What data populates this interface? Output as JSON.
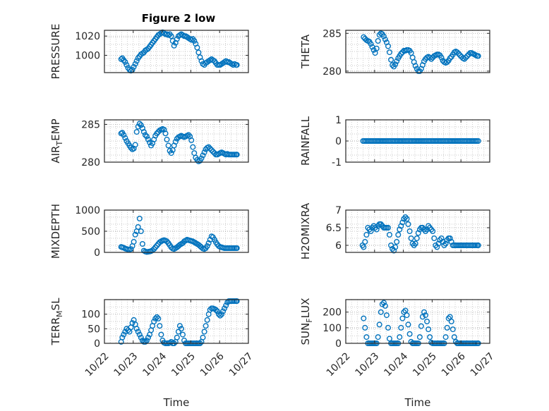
{
  "figure_title": "Figure 2 low",
  "colors": {
    "marker": "#0072BD",
    "axis": "#262626",
    "grid": "#b8b8b8"
  },
  "chart_data": [
    {
      "id": "pressure",
      "type": "scatter",
      "ylabel": "PRESSURE",
      "ylim": [
        982,
        1026
      ],
      "yticks": [
        1000,
        1020
      ],
      "ytick_labels": [
        "1000",
        "1020"
      ],
      "xlim": [
        0,
        5
      ],
      "grid": true,
      "x": [
        0.58,
        0.62,
        0.67,
        0.72,
        0.77,
        0.82,
        0.87,
        0.92,
        0.97,
        1.02,
        1.07,
        1.12,
        1.17,
        1.22,
        1.27,
        1.32,
        1.37,
        1.42,
        1.47,
        1.52,
        1.57,
        1.62,
        1.67,
        1.72,
        1.77,
        1.82,
        1.87,
        1.92,
        1.97,
        2.02,
        2.07,
        2.12,
        2.17,
        2.22,
        2.27,
        2.32,
        2.37,
        2.42,
        2.47,
        2.52,
        2.57,
        2.62,
        2.67,
        2.72,
        2.77,
        2.82,
        2.87,
        2.92,
        2.97,
        3.02,
        3.07,
        3.12,
        3.17,
        3.22,
        3.27,
        3.32,
        3.37,
        3.42,
        3.47,
        3.52,
        3.57,
        3.62,
        3.67,
        3.72,
        3.77,
        3.82,
        3.87,
        3.92,
        3.97,
        4.02,
        4.07,
        4.12,
        4.17,
        4.22,
        4.27,
        4.32,
        4.37,
        4.42,
        4.47,
        4.52,
        4.57,
        4.6
      ],
      "y": [
        996,
        997,
        995,
        993,
        990,
        987,
        985,
        984,
        985,
        988,
        991,
        994,
        997,
        999,
        1001,
        1002,
        1003,
        1005,
        1006,
        1007,
        1009,
        1011,
        1013,
        1015,
        1017,
        1019,
        1021,
        1022,
        1023,
        1024,
        1023,
        1022,
        1022,
        1021,
        1022,
        1020,
        1015,
        1010,
        1013,
        1017,
        1020,
        1021,
        1022,
        1021,
        1020,
        1020,
        1019,
        1018,
        1017,
        1016,
        1017,
        1015,
        1012,
        1008,
        1003,
        998,
        994,
        991,
        990,
        992,
        993,
        994,
        995,
        996,
        995,
        994,
        992,
        990,
        990,
        990,
        991,
        992,
        993,
        994,
        993,
        993,
        992,
        991,
        990,
        991,
        990,
        990
      ]
    },
    {
      "id": "theta",
      "type": "scatter",
      "ylabel": "THETA",
      "ylim": [
        279.8,
        285.4
      ],
      "yticks": [
        280,
        285
      ],
      "ytick_labels": [
        "280",
        "285"
      ],
      "xlim": [
        0,
        5
      ],
      "grid": true,
      "x": [
        0.62,
        0.67,
        0.72,
        0.77,
        0.82,
        0.87,
        0.92,
        0.97,
        1.02,
        1.07,
        1.12,
        1.17,
        1.22,
        1.27,
        1.32,
        1.37,
        1.42,
        1.47,
        1.52,
        1.57,
        1.62,
        1.67,
        1.72,
        1.77,
        1.82,
        1.87,
        1.92,
        1.97,
        2.02,
        2.07,
        2.12,
        2.17,
        2.22,
        2.27,
        2.32,
        2.37,
        2.42,
        2.47,
        2.52,
        2.57,
        2.62,
        2.67,
        2.72,
        2.77,
        2.82,
        2.87,
        2.92,
        2.97,
        3.02,
        3.07,
        3.12,
        3.17,
        3.22,
        3.27,
        3.32,
        3.37,
        3.42,
        3.47,
        3.52,
        3.57,
        3.62,
        3.67,
        3.72,
        3.77,
        3.82,
        3.87,
        3.92,
        3.97,
        4.02,
        4.07,
        4.12,
        4.17,
        4.22,
        4.27,
        4.32,
        4.37,
        4.42,
        4.47,
        4.52,
        4.57,
        4.6
      ],
      "y": [
        284.5,
        284.3,
        284.1,
        284.0,
        283.9,
        283.6,
        283.2,
        282.8,
        282.4,
        283.0,
        284.0,
        284.8,
        285.0,
        284.9,
        284.6,
        284.2,
        283.8,
        283.3,
        282.5,
        281.5,
        280.8,
        280.6,
        280.9,
        281.3,
        281.7,
        282.0,
        282.3,
        282.5,
        282.7,
        282.7,
        282.8,
        282.8,
        282.7,
        282.4,
        281.8,
        281.2,
        280.7,
        280.3,
        280.0,
        280.0,
        280.3,
        280.8,
        281.3,
        281.6,
        281.8,
        281.9,
        281.8,
        281.6,
        281.8,
        282.0,
        282.1,
        282.2,
        282.2,
        282.1,
        281.8,
        281.4,
        281.2,
        281.1,
        281.2,
        281.4,
        281.7,
        281.9,
        282.2,
        282.5,
        282.6,
        282.5,
        282.3,
        282.1,
        281.9,
        281.7,
        281.6,
        281.8,
        282.0,
        282.2,
        282.4,
        282.4,
        282.3,
        282.2,
        282.1,
        282.0,
        282.0
      ]
    },
    {
      "id": "airtemp",
      "type": "scatter",
      "ylabel_main": "AIR",
      "ylabel_sub": "T",
      "ylabel_rest": "EMP",
      "ylim": [
        280,
        285.6
      ],
      "yticks": [
        280,
        285
      ],
      "ytick_labels": [
        "280",
        "285"
      ],
      "xlim": [
        0,
        5
      ],
      "grid": true,
      "x": [
        0.58,
        0.62,
        0.67,
        0.72,
        0.77,
        0.82,
        0.87,
        0.92,
        0.97,
        1.02,
        1.07,
        1.12,
        1.17,
        1.22,
        1.27,
        1.32,
        1.37,
        1.42,
        1.47,
        1.52,
        1.57,
        1.62,
        1.67,
        1.72,
        1.77,
        1.82,
        1.87,
        1.92,
        1.97,
        2.02,
        2.07,
        2.12,
        2.17,
        2.22,
        2.27,
        2.32,
        2.37,
        2.42,
        2.47,
        2.52,
        2.57,
        2.62,
        2.67,
        2.72,
        2.77,
        2.82,
        2.87,
        2.92,
        2.97,
        3.02,
        3.07,
        3.12,
        3.17,
        3.22,
        3.27,
        3.32,
        3.37,
        3.42,
        3.47,
        3.52,
        3.57,
        3.62,
        3.67,
        3.72,
        3.77,
        3.82,
        3.87,
        3.92,
        3.97,
        4.02,
        4.07,
        4.12,
        4.17,
        4.22,
        4.27,
        4.32,
        4.37,
        4.42,
        4.47,
        4.52,
        4.57,
        4.6
      ],
      "y": [
        283.8,
        283.9,
        283.6,
        283.2,
        282.8,
        282.5,
        282.2,
        281.9,
        281.7,
        281.8,
        282.3,
        284.0,
        284.7,
        285.1,
        284.9,
        284.5,
        284.0,
        283.6,
        283.4,
        283.0,
        282.6,
        282.2,
        282.5,
        283.0,
        283.5,
        283.8,
        284.0,
        284.2,
        284.3,
        284.4,
        284.3,
        283.8,
        283.0,
        282.2,
        281.5,
        281.2,
        281.6,
        282.2,
        282.7,
        283.1,
        283.3,
        283.4,
        283.5,
        283.4,
        283.3,
        283.4,
        283.5,
        283.6,
        283.4,
        282.9,
        282.0,
        281.2,
        280.6,
        280.3,
        280.1,
        280.2,
        280.5,
        280.9,
        281.3,
        281.7,
        281.9,
        282.0,
        281.8,
        281.6,
        281.4,
        281.2,
        281.0,
        281.0,
        281.1,
        281.2,
        281.3,
        281.2,
        281.1,
        281.0,
        281.1,
        281.0,
        281.0,
        281.0,
        281.0,
        281.0,
        281.0,
        281.0
      ]
    },
    {
      "id": "rainfall",
      "type": "scatter",
      "ylabel": "RAINFALL",
      "ylim": [
        -1,
        1
      ],
      "yticks": [
        -1,
        0,
        1
      ],
      "ytick_labels": [
        "-1",
        "0",
        "1"
      ],
      "xlim": [
        0,
        5
      ],
      "grid": true,
      "x_start": 0.6,
      "x_end": 4.6,
      "x_step": 0.05,
      "constant_y": 0
    },
    {
      "id": "mixdepth",
      "type": "scatter",
      "ylabel": "MIXDEPTH",
      "ylim": [
        0,
        1000
      ],
      "yticks": [
        0,
        500,
        1000
      ],
      "ytick_labels": [
        "0",
        "500",
        "1000"
      ],
      "xlim": [
        0,
        5
      ],
      "grid": true,
      "x": [
        0.58,
        0.62,
        0.67,
        0.72,
        0.77,
        0.82,
        0.87,
        0.92,
        0.97,
        1.02,
        1.07,
        1.12,
        1.17,
        1.22,
        1.27,
        1.32,
        1.37,
        1.42,
        1.47,
        1.52,
        1.57,
        1.62,
        1.67,
        1.72,
        1.77,
        1.82,
        1.87,
        1.92,
        1.97,
        2.02,
        2.07,
        2.12,
        2.17,
        2.22,
        2.27,
        2.32,
        2.37,
        2.42,
        2.47,
        2.52,
        2.57,
        2.62,
        2.67,
        2.72,
        2.77,
        2.82,
        2.87,
        2.92,
        2.97,
        3.02,
        3.07,
        3.12,
        3.17,
        3.22,
        3.27,
        3.32,
        3.37,
        3.42,
        3.47,
        3.52,
        3.57,
        3.62,
        3.67,
        3.72,
        3.77,
        3.82,
        3.87,
        3.92,
        3.97,
        4.02,
        4.07,
        4.12,
        4.17,
        4.22,
        4.27,
        4.32,
        4.37,
        4.42,
        4.47,
        4.52,
        4.57,
        4.6
      ],
      "y": [
        130,
        120,
        110,
        90,
        80,
        70,
        60,
        80,
        150,
        250,
        420,
        500,
        600,
        800,
        500,
        200,
        40,
        20,
        10,
        15,
        20,
        30,
        50,
        80,
        120,
        160,
        200,
        240,
        260,
        280,
        290,
        280,
        260,
        220,
        170,
        120,
        90,
        80,
        100,
        120,
        150,
        180,
        200,
        220,
        260,
        280,
        300,
        290,
        280,
        270,
        260,
        240,
        220,
        200,
        180,
        150,
        120,
        90,
        80,
        100,
        150,
        220,
        300,
        380,
        360,
        300,
        240,
        190,
        150,
        130,
        120,
        110,
        100,
        100,
        100,
        100,
        100,
        100,
        100,
        100,
        100,
        100
      ]
    },
    {
      "id": "h2omixra",
      "type": "scatter",
      "ylabel": "H2OMIXRA",
      "ylim": [
        5.8,
        7
      ],
      "yticks": [
        6,
        6.5,
        7
      ],
      "ytick_labels": [
        "6",
        "6.5",
        "7"
      ],
      "xlim": [
        0,
        5
      ],
      "grid": true,
      "x": [
        0.58,
        0.62,
        0.67,
        0.72,
        0.77,
        0.82,
        0.87,
        0.92,
        0.97,
        1.02,
        1.07,
        1.12,
        1.17,
        1.22,
        1.27,
        1.32,
        1.37,
        1.42,
        1.47,
        1.52,
        1.57,
        1.62,
        1.67,
        1.72,
        1.77,
        1.82,
        1.87,
        1.92,
        1.97,
        2.02,
        2.07,
        2.12,
        2.17,
        2.22,
        2.27,
        2.32,
        2.37,
        2.42,
        2.47,
        2.52,
        2.57,
        2.62,
        2.67,
        2.72,
        2.77,
        2.82,
        2.87,
        2.92,
        2.97,
        3.02,
        3.07,
        3.12,
        3.17,
        3.22,
        3.27,
        3.32,
        3.37,
        3.42,
        3.47,
        3.52,
        3.57,
        3.62,
        3.67,
        3.72,
        3.77,
        3.82,
        3.87,
        3.92,
        3.97,
        4.02,
        4.07,
        4.12,
        4.17,
        4.22,
        4.27,
        4.32,
        4.37,
        4.42,
        4.47,
        4.52,
        4.57,
        4.6
      ],
      "y": [
        6.0,
        5.95,
        6.1,
        6.3,
        6.5,
        6.45,
        6.4,
        6.5,
        6.55,
        6.5,
        6.45,
        6.55,
        6.6,
        6.6,
        6.55,
        6.5,
        6.5,
        6.5,
        6.5,
        6.3,
        6.0,
        5.9,
        5.85,
        5.95,
        6.1,
        6.3,
        6.45,
        6.55,
        6.65,
        6.75,
        6.8,
        6.75,
        6.6,
        6.4,
        6.2,
        6.05,
        6.0,
        6.05,
        6.2,
        6.35,
        6.45,
        6.5,
        6.5,
        6.45,
        6.4,
        6.45,
        6.55,
        6.5,
        6.45,
        6.4,
        6.2,
        6.0,
        5.95,
        6.05,
        6.15,
        6.2,
        6.1,
        6.0,
        6.05,
        6.15,
        6.2,
        6.2,
        6.1,
        6.0,
        6.0,
        6.0,
        6.0,
        6.0,
        6.0,
        6.0,
        6.0,
        6.0,
        6.0,
        6.0,
        6.0,
        6.0,
        6.0,
        6.0,
        6.0,
        6.0,
        6.0,
        6.0
      ]
    },
    {
      "id": "terrmsl",
      "type": "scatter",
      "ylabel_main": "TERR",
      "ylabel_sub": "M",
      "ylabel_rest": "SL",
      "ylim": [
        0,
        150
      ],
      "yticks": [
        0,
        50,
        100
      ],
      "ytick_labels": [
        "0",
        "50",
        "100"
      ],
      "xlim": [
        0,
        5
      ],
      "grid": true,
      "x_ticks_labels": [
        "10/22",
        "10/23",
        "10/24",
        "10/25",
        "10/26",
        "10/27"
      ],
      "xlabel": "Time",
      "x": [
        0.58,
        0.62,
        0.67,
        0.72,
        0.77,
        0.82,
        0.87,
        0.92,
        0.97,
        1.02,
        1.07,
        1.12,
        1.17,
        1.22,
        1.27,
        1.32,
        1.37,
        1.42,
        1.47,
        1.52,
        1.57,
        1.62,
        1.67,
        1.72,
        1.77,
        1.82,
        1.87,
        1.92,
        1.97,
        2.02,
        2.07,
        2.12,
        2.17,
        2.22,
        2.27,
        2.32,
        2.37,
        2.42,
        2.47,
        2.52,
        2.57,
        2.62,
        2.67,
        2.72,
        2.77,
        2.82,
        2.87,
        2.92,
        2.97,
        3.02,
        3.07,
        3.12,
        3.17,
        3.22,
        3.27,
        3.32,
        3.37,
        3.42,
        3.47,
        3.52,
        3.57,
        3.62,
        3.67,
        3.72,
        3.77,
        3.82,
        3.87,
        3.92,
        3.97,
        4.02,
        4.07,
        4.12,
        4.17,
        4.22,
        4.27,
        4.32,
        4.37,
        4.42,
        4.47,
        4.52,
        4.57,
        4.6
      ],
      "y": [
        5,
        20,
        30,
        40,
        50,
        45,
        40,
        55,
        70,
        80,
        65,
        50,
        40,
        30,
        20,
        10,
        5,
        5,
        10,
        20,
        30,
        45,
        60,
        75,
        85,
        90,
        85,
        60,
        30,
        10,
        2,
        0,
        0,
        0,
        2,
        5,
        0,
        0,
        5,
        20,
        40,
        60,
        50,
        30,
        10,
        0,
        0,
        0,
        0,
        0,
        0,
        0,
        0,
        0,
        0,
        0,
        5,
        20,
        40,
        60,
        80,
        100,
        115,
        120,
        120,
        118,
        115,
        110,
        100,
        95,
        100,
        110,
        120,
        130,
        140,
        145,
        145,
        145,
        145,
        145,
        145,
        145
      ]
    },
    {
      "id": "sunflux",
      "type": "scatter",
      "ylabel_main": "SUN",
      "ylabel_sub": "F",
      "ylabel_rest": "LUX",
      "ylim": [
        0,
        280
      ],
      "yticks": [
        0,
        100,
        200
      ],
      "ytick_labels": [
        "0",
        "100",
        "200"
      ],
      "xlim": [
        0,
        5
      ],
      "grid": true,
      "x_ticks_labels": [
        "10/22",
        "10/23",
        "10/24",
        "10/25",
        "10/26",
        "10/27"
      ],
      "xlabel": "Time",
      "x": [
        0.62,
        0.67,
        0.72,
        0.77,
        0.82,
        0.87,
        0.92,
        0.97,
        1.02,
        1.07,
        1.12,
        1.17,
        1.22,
        1.27,
        1.32,
        1.37,
        1.42,
        1.47,
        1.52,
        1.57,
        1.62,
        1.67,
        1.72,
        1.77,
        1.82,
        1.87,
        1.92,
        1.97,
        2.02,
        2.07,
        2.12,
        2.17,
        2.22,
        2.27,
        2.32,
        2.37,
        2.42,
        2.47,
        2.52,
        2.57,
        2.62,
        2.67,
        2.72,
        2.77,
        2.82,
        2.87,
        2.92,
        2.97,
        3.02,
        3.07,
        3.12,
        3.17,
        3.22,
        3.27,
        3.32,
        3.37,
        3.42,
        3.47,
        3.52,
        3.57,
        3.62,
        3.67,
        3.72,
        3.77,
        3.82,
        3.87,
        3.92,
        3.97,
        4.02,
        4.07,
        4.12,
        4.17,
        4.22,
        4.27,
        4.32,
        4.37,
        4.42,
        4.47,
        4.52,
        4.57,
        4.6
      ],
      "y": [
        160,
        100,
        40,
        0,
        0,
        0,
        0,
        0,
        0,
        0,
        40,
        120,
        200,
        250,
        260,
        240,
        180,
        100,
        30,
        0,
        0,
        0,
        0,
        0,
        0,
        40,
        100,
        160,
        200,
        210,
        180,
        120,
        60,
        10,
        0,
        0,
        0,
        0,
        0,
        40,
        110,
        170,
        200,
        180,
        140,
        90,
        40,
        5,
        0,
        0,
        0,
        0,
        0,
        0,
        0,
        0,
        0,
        40,
        100,
        160,
        170,
        140,
        90,
        40,
        10,
        0,
        0,
        0,
        0,
        0,
        0,
        0,
        0,
        0,
        0,
        0,
        0,
        0,
        0,
        0,
        0
      ]
    }
  ]
}
